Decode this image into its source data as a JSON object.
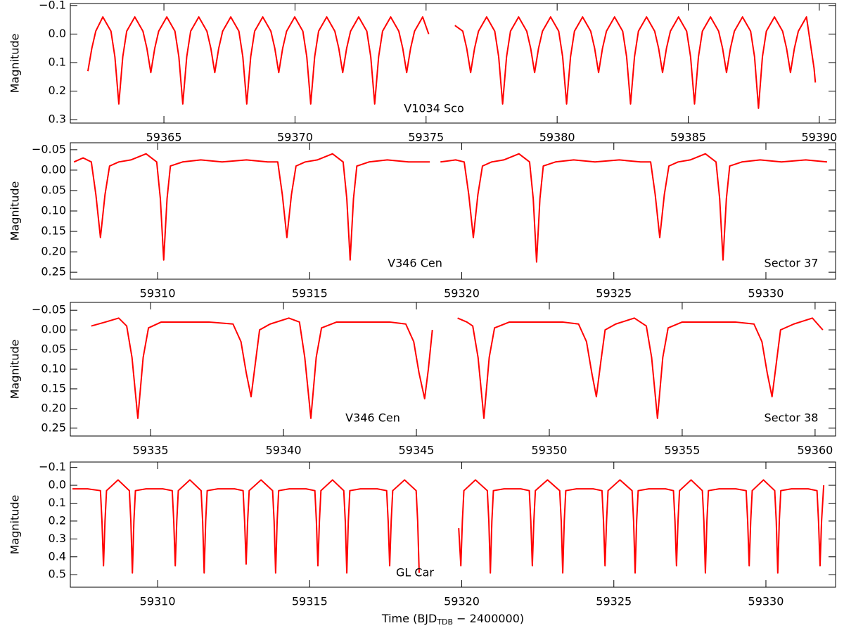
{
  "chart_data": [
    {
      "type": "line",
      "ylabel": "Magnitude",
      "annotations": [
        "V1034 Sco"
      ],
      "color": "#ff0000",
      "xlim": [
        59361.43,
        59390.62
      ],
      "ylim": [
        0.312,
        -0.107
      ],
      "xticks": [
        59365,
        59370,
        59375,
        59380,
        59385,
        59390
      ],
      "yticks": [
        {
          "value": -0.1,
          "label": "−0.1"
        },
        {
          "value": 0.0,
          "label": "0.0"
        },
        {
          "value": 0.1,
          "label": "0.1"
        },
        {
          "value": 0.2,
          "label": "0.2"
        },
        {
          "value": 0.3,
          "label": "0.3"
        }
      ],
      "x": [
        59362.1,
        59362.25,
        59362.4,
        59362.67,
        59362.98,
        59363.13,
        59363.28,
        59363.43,
        59363.58,
        59363.89,
        59364.2,
        59364.35,
        59364.5,
        59364.65,
        59364.8,
        59365.11,
        59365.42,
        59365.57,
        59365.72,
        59365.87,
        59366.02,
        59366.33,
        59366.64,
        59366.79,
        59366.94,
        59367.09,
        59367.24,
        59367.55,
        59367.86,
        59368.01,
        59368.16,
        59368.31,
        59368.46,
        59368.77,
        59369.08,
        59369.23,
        59369.38,
        59369.53,
        59369.68,
        59369.99,
        59370.3,
        59370.45,
        59370.6,
        59370.75,
        59370.9,
        59371.21,
        59371.52,
        59371.67,
        59371.82,
        59371.97,
        59372.12,
        59372.43,
        59372.74,
        59372.89,
        59373.04,
        59373.19,
        59373.34,
        59373.65,
        59373.96,
        59374.11,
        59374.26,
        59374.41,
        59374.56,
        59374.87,
        59375.1,
        59375.6,
        59376.1,
        59376.4,
        59376.55,
        59376.7,
        59376.85,
        59377.0,
        59377.31,
        59377.62,
        59377.77,
        59377.92,
        59378.07,
        59378.22,
        59378.53,
        59378.84,
        59378.99,
        59379.14,
        59379.29,
        59379.44,
        59379.75,
        59380.06,
        59380.21,
        59380.36,
        59380.51,
        59380.66,
        59380.97,
        59381.28,
        59381.43,
        59381.58,
        59381.73,
        59381.88,
        59382.19,
        59382.5,
        59382.65,
        59382.8,
        59382.95,
        59383.1,
        59383.41,
        59383.72,
        59383.87,
        59384.02,
        59384.17,
        59384.32,
        59384.63,
        59384.94,
        59385.09,
        59385.24,
        59385.39,
        59385.54,
        59385.85,
        59386.16,
        59386.31,
        59386.46,
        59386.61,
        59386.76,
        59387.07,
        59387.38,
        59387.53,
        59387.68,
        59387.83,
        59387.98,
        59388.29,
        59388.6,
        59388.75,
        59388.9,
        59389.05,
        59389.2,
        59389.51,
        59389.8,
        59389.85
      ],
      "values": [
        0.13,
        0.05,
        -0.01,
        -0.06,
        -0.01,
        0.08,
        0.245,
        0.08,
        -0.01,
        -0.06,
        -0.01,
        0.05,
        0.135,
        0.05,
        -0.01,
        -0.06,
        -0.01,
        0.08,
        0.245,
        0.08,
        -0.01,
        -0.06,
        -0.01,
        0.05,
        0.135,
        0.05,
        -0.01,
        -0.06,
        -0.01,
        0.08,
        0.245,
        0.08,
        -0.01,
        -0.06,
        -0.01,
        0.05,
        0.135,
        0.05,
        -0.01,
        -0.06,
        -0.01,
        0.08,
        0.245,
        0.08,
        -0.01,
        -0.06,
        -0.01,
        0.05,
        0.135,
        0.05,
        -0.01,
        -0.06,
        -0.01,
        0.08,
        0.245,
        0.08,
        -0.01,
        -0.06,
        -0.01,
        0.05,
        0.135,
        0.05,
        -0.01,
        -0.06,
        0.0,
        null,
        -0.03,
        -0.01,
        0.05,
        0.135,
        0.05,
        -0.01,
        -0.06,
        -0.01,
        0.08,
        0.245,
        0.08,
        -0.01,
        -0.06,
        -0.01,
        0.05,
        0.135,
        0.05,
        -0.01,
        -0.06,
        -0.01,
        0.08,
        0.245,
        0.08,
        -0.01,
        -0.06,
        -0.01,
        0.05,
        0.135,
        0.05,
        -0.01,
        -0.06,
        -0.01,
        0.08,
        0.245,
        0.08,
        -0.01,
        -0.06,
        -0.01,
        0.05,
        0.135,
        0.05,
        -0.01,
        -0.06,
        -0.01,
        0.08,
        0.245,
        0.08,
        -0.01,
        -0.06,
        -0.01,
        0.05,
        0.135,
        0.05,
        -0.01,
        -0.06,
        -0.01,
        0.08,
        0.26,
        0.08,
        -0.01,
        -0.06,
        -0.01,
        0.05,
        0.135,
        0.05,
        -0.01,
        -0.06,
        0.12,
        0.17
      ]
    },
    {
      "type": "line",
      "ylabel": "Magnitude",
      "annotations": [
        "V346 Cen",
        "Sector 37"
      ],
      "color": "#ff0000",
      "xlim": [
        59307.13,
        59332.29
      ],
      "ylim": [
        0.267,
        -0.067
      ],
      "xticks": [
        59310,
        59315,
        59320,
        59325,
        59330
      ],
      "yticks": [
        {
          "value": -0.05,
          "label": "−0.05"
        },
        {
          "value": 0.0,
          "label": "0.00"
        },
        {
          "value": 0.05,
          "label": "0.05"
        },
        {
          "value": 0.1,
          "label": "0.10"
        },
        {
          "value": 0.15,
          "label": "0.15"
        },
        {
          "value": 0.2,
          "label": "0.20"
        },
        {
          "value": 0.25,
          "label": "0.25"
        }
      ],
      "x": [
        59307.25,
        59307.55,
        59307.82,
        59307.97,
        59308.12,
        59308.27,
        59308.42,
        59308.72,
        59309.12,
        59309.62,
        59309.97,
        59310.09,
        59310.2,
        59310.31,
        59310.42,
        59310.82,
        59311.42,
        59312.12,
        59312.92,
        59313.62,
        59313.95,
        59314.1,
        59314.25,
        59314.4,
        59314.55,
        59314.85,
        59315.25,
        59315.75,
        59316.1,
        59316.22,
        59316.33,
        59316.44,
        59316.55,
        59316.95,
        59317.55,
        59318.25,
        59318.95,
        59319.1,
        59319.3,
        59319.8,
        59320.08,
        59320.23,
        59320.38,
        59320.53,
        59320.68,
        59320.98,
        59321.38,
        59321.88,
        59322.23,
        59322.35,
        59322.46,
        59322.57,
        59322.68,
        59323.08,
        59323.68,
        59324.38,
        59325.18,
        59325.88,
        59326.21,
        59326.36,
        59326.51,
        59326.66,
        59326.81,
        59327.11,
        59327.51,
        59328.01,
        59328.36,
        59328.48,
        59328.59,
        59328.7,
        59328.81,
        59329.21,
        59329.81,
        59330.51,
        59331.31,
        59332.01
      ],
      "values": [
        -0.02,
        -0.03,
        -0.02,
        0.06,
        0.165,
        0.06,
        -0.01,
        -0.02,
        -0.025,
        -0.04,
        -0.02,
        0.07,
        0.22,
        0.07,
        -0.01,
        -0.02,
        -0.025,
        -0.02,
        -0.025,
        -0.02,
        -0.02,
        0.06,
        0.165,
        0.06,
        -0.01,
        -0.02,
        -0.025,
        -0.04,
        -0.02,
        0.07,
        0.22,
        0.07,
        -0.01,
        -0.02,
        -0.025,
        -0.02,
        -0.02,
        null,
        -0.02,
        -0.025,
        -0.02,
        0.06,
        0.165,
        0.06,
        -0.01,
        -0.02,
        -0.025,
        -0.04,
        -0.02,
        0.07,
        0.225,
        0.07,
        -0.01,
        -0.02,
        -0.025,
        -0.02,
        -0.025,
        -0.02,
        -0.02,
        0.06,
        0.165,
        0.06,
        -0.01,
        -0.02,
        -0.025,
        -0.04,
        -0.02,
        0.07,
        0.22,
        0.07,
        -0.01,
        -0.02,
        -0.025,
        -0.02,
        -0.025,
        -0.02
      ]
    },
    {
      "type": "line",
      "ylabel": "Magnitude",
      "annotations": [
        "V346 Cen",
        "Sector 38"
      ],
      "color": "#ff0000",
      "xlim": [
        59331.98,
        59360.77
      ],
      "ylim": [
        0.27,
        -0.07
      ],
      "xticks": [
        59335,
        59340,
        59345,
        59350,
        59355,
        59360
      ],
      "yticks": [
        {
          "value": -0.05,
          "label": "−0.05"
        },
        {
          "value": 0.0,
          "label": "0.00"
        },
        {
          "value": 0.05,
          "label": "0.05"
        },
        {
          "value": 0.1,
          "label": "0.10"
        },
        {
          "value": 0.15,
          "label": "0.15"
        },
        {
          "value": 0.2,
          "label": "0.20"
        },
        {
          "value": 0.25,
          "label": "0.25"
        }
      ],
      "x": [
        59332.77,
        59333.3,
        59333.8,
        59334.1,
        59334.3,
        59334.52,
        59334.72,
        59334.92,
        59335.4,
        59336.3,
        59337.2,
        59338.1,
        59338.4,
        59338.6,
        59338.78,
        59338.95,
        59339.1,
        59339.5,
        59340.2,
        59340.6,
        59340.8,
        59341.03,
        59341.23,
        59341.43,
        59342.0,
        59343.0,
        59344.0,
        59344.6,
        59344.9,
        59345.1,
        59345.31,
        59345.45,
        59345.6,
        59346.0,
        59346.55,
        59346.9,
        59347.12,
        59347.32,
        59347.54,
        59347.74,
        59347.94,
        59348.5,
        59349.5,
        59350.5,
        59351.1,
        59351.4,
        59351.6,
        59351.77,
        59351.94,
        59352.1,
        59352.5,
        59353.2,
        59353.65,
        59353.85,
        59354.07,
        59354.27,
        59354.47,
        59355.0,
        59356.0,
        59357.0,
        59357.7,
        59358.0,
        59358.2,
        59358.38,
        59358.55,
        59358.7,
        59359.2,
        59359.9,
        59360.29
      ],
      "values": [
        -0.01,
        -0.02,
        -0.03,
        -0.01,
        0.07,
        0.225,
        0.07,
        -0.005,
        -0.02,
        -0.02,
        -0.02,
        -0.015,
        0.03,
        0.11,
        0.17,
        0.08,
        0.0,
        -0.015,
        -0.03,
        -0.02,
        0.07,
        0.225,
        0.07,
        -0.005,
        -0.02,
        -0.02,
        -0.02,
        -0.015,
        0.03,
        0.11,
        0.175,
        0.1,
        0.0,
        null,
        -0.03,
        -0.02,
        -0.01,
        0.07,
        0.225,
        0.07,
        -0.005,
        -0.02,
        -0.02,
        -0.02,
        -0.015,
        0.03,
        0.11,
        0.17,
        0.08,
        0.0,
        -0.015,
        -0.03,
        -0.01,
        0.07,
        0.225,
        0.07,
        -0.005,
        -0.02,
        -0.02,
        -0.02,
        -0.015,
        0.03,
        0.11,
        0.17,
        0.08,
        0.0,
        -0.015,
        -0.03,
        0.0
      ]
    },
    {
      "type": "line",
      "ylabel": "Magnitude",
      "annotations": [
        "GL  Car"
      ],
      "color": "#ff0000",
      "xlabel": {
        "text": "Time (BJD",
        "sub": "TDB",
        "tail": " − 2400000)"
      },
      "xlim": [
        59307.13,
        59332.29
      ],
      "ylim": [
        0.57,
        -0.13
      ],
      "xticks": [
        59310,
        59315,
        59320,
        59325,
        59330
      ],
      "yticks": [
        {
          "value": -0.1,
          "label": "−0.1"
        },
        {
          "value": 0.0,
          "label": "0.0"
        },
        {
          "value": 0.1,
          "label": "0.1"
        },
        {
          "value": 0.2,
          "label": "0.2"
        },
        {
          "value": 0.3,
          "label": "0.3"
        },
        {
          "value": 0.4,
          "label": "0.4"
        },
        {
          "value": 0.5,
          "label": "0.5"
        }
      ],
      "x": [
        59307.2,
        59307.7,
        59308.12,
        59308.17,
        59308.22,
        59308.27,
        59308.32,
        59308.7,
        59309.07,
        59309.12,
        59309.17,
        59309.22,
        59309.27,
        59309.62,
        59310.17,
        59310.48,
        59310.53,
        59310.58,
        59310.63,
        59310.68,
        59311.06,
        59311.43,
        59311.48,
        59311.53,
        59311.58,
        59311.63,
        59311.98,
        59312.53,
        59312.81,
        59312.86,
        59312.91,
        59312.96,
        59313.01,
        59313.4,
        59313.78,
        59313.83,
        59313.88,
        59313.93,
        59313.98,
        59314.33,
        59314.88,
        59315.17,
        59315.22,
        59315.27,
        59315.32,
        59315.37,
        59315.75,
        59316.12,
        59316.17,
        59316.22,
        59316.27,
        59316.32,
        59316.67,
        59317.22,
        59317.53,
        59317.58,
        59317.63,
        59317.68,
        59317.73,
        59318.12,
        59318.5,
        59318.55,
        59318.6,
        59319.2,
        59319.9,
        59319.97,
        59320.02,
        59320.07,
        59320.45,
        59320.84,
        59320.89,
        59320.94,
        59320.99,
        59321.04,
        59321.39,
        59321.94,
        59322.22,
        59322.27,
        59322.32,
        59322.37,
        59322.42,
        59322.82,
        59323.22,
        59323.27,
        59323.32,
        59323.37,
        59323.42,
        59323.77,
        59324.32,
        59324.61,
        59324.66,
        59324.71,
        59324.76,
        59324.81,
        59325.2,
        59325.6,
        59325.65,
        59325.7,
        59325.75,
        59325.8,
        59326.15,
        59326.7,
        59326.96,
        59327.01,
        59327.06,
        59327.11,
        59327.16,
        59327.54,
        59327.91,
        59327.96,
        59328.01,
        59328.06,
        59328.11,
        59328.46,
        59329.01,
        59329.35,
        59329.4,
        59329.45,
        59329.5,
        59329.55,
        59329.92,
        59330.29,
        59330.34,
        59330.39,
        59330.44,
        59330.49,
        59330.84,
        59331.39,
        59331.68,
        59331.73,
        59331.78,
        59331.83,
        59331.9
      ],
      "values": [
        0.02,
        0.02,
        0.03,
        0.2,
        0.45,
        0.2,
        0.03,
        -0.03,
        0.03,
        0.2,
        0.49,
        0.2,
        0.03,
        0.02,
        0.02,
        0.03,
        0.2,
        0.45,
        0.2,
        0.03,
        -0.03,
        0.03,
        0.2,
        0.49,
        0.2,
        0.03,
        0.02,
        0.02,
        0.03,
        0.2,
        0.44,
        0.2,
        0.03,
        -0.03,
        0.03,
        0.2,
        0.49,
        0.2,
        0.03,
        0.02,
        0.02,
        0.03,
        0.2,
        0.45,
        0.2,
        0.03,
        -0.03,
        0.03,
        0.2,
        0.49,
        0.2,
        0.03,
        0.02,
        0.02,
        0.03,
        0.2,
        0.45,
        0.2,
        0.03,
        -0.03,
        0.03,
        0.2,
        0.49,
        null,
        0.24,
        0.45,
        0.2,
        0.03,
        -0.03,
        0.03,
        0.2,
        0.49,
        0.2,
        0.03,
        0.02,
        0.02,
        0.03,
        0.2,
        0.45,
        0.2,
        0.03,
        -0.03,
        0.03,
        0.2,
        0.49,
        0.2,
        0.03,
        0.02,
        0.02,
        0.03,
        0.2,
        0.45,
        0.2,
        0.03,
        -0.03,
        0.03,
        0.2,
        0.49,
        0.2,
        0.03,
        0.02,
        0.02,
        0.03,
        0.2,
        0.45,
        0.2,
        0.03,
        -0.03,
        0.03,
        0.2,
        0.49,
        0.2,
        0.03,
        0.02,
        0.02,
        0.03,
        0.2,
        0.45,
        0.2,
        0.03,
        -0.03,
        0.03,
        0.2,
        0.49,
        0.2,
        0.03,
        0.02,
        0.02,
        0.03,
        0.2,
        0.45,
        0.2,
        0.0
      ]
    }
  ]
}
